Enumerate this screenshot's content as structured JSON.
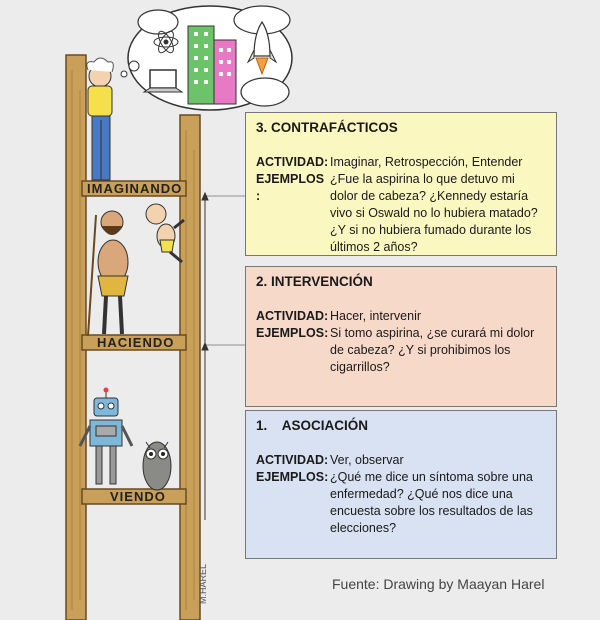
{
  "levels": [
    {
      "rung_label": "IMAGINANDO",
      "title": "3. CONTRAFÁCTICOS",
      "actividad_label": "ACTIVIDAD:",
      "actividad": "Imaginar, Retrospección, Entender",
      "ejemplos_label": "EJEMPLOS :",
      "ejemplos": "¿Fue la aspirina lo que detuvo mi dolor de cabeza? ¿Kennedy estaría vivo si Oswald no lo hubiera matado? ¿Y si no hubiera fumado durante los últimos 2 años?"
    },
    {
      "rung_label": "HACIENDO",
      "title": "2. INTERVENCIÓN",
      "actividad_label": "ACTIVIDAD:",
      "actividad": "Hacer, intervenir",
      "ejemplos_label": "EJEMPLOS:",
      "ejemplos": "Si tomo aspirina, ¿se curará mi dolor de cabeza? ¿Y si prohibimos los cigarrillos?"
    },
    {
      "rung_label": "VIENDO",
      "title": "1.    ASOCIACIÓN",
      "actividad_label": "ACTIVIDAD:",
      "actividad": "Ver, observar",
      "ejemplos_label": "EJEMPLOS:",
      "ejemplos": "¿Qué me dice un síntoma sobre una enfermedad? ¿Qué nos dice una encuesta sobre los resultados de las elecciones?"
    }
  ],
  "source": "Fuente: Drawing by Maayan Harel",
  "signature": "M.HAREL",
  "colors": {
    "box3": "#fbf7c0",
    "box2": "#f7d9c9",
    "box1": "#d8e2f2",
    "wood": "#c9a05a"
  }
}
